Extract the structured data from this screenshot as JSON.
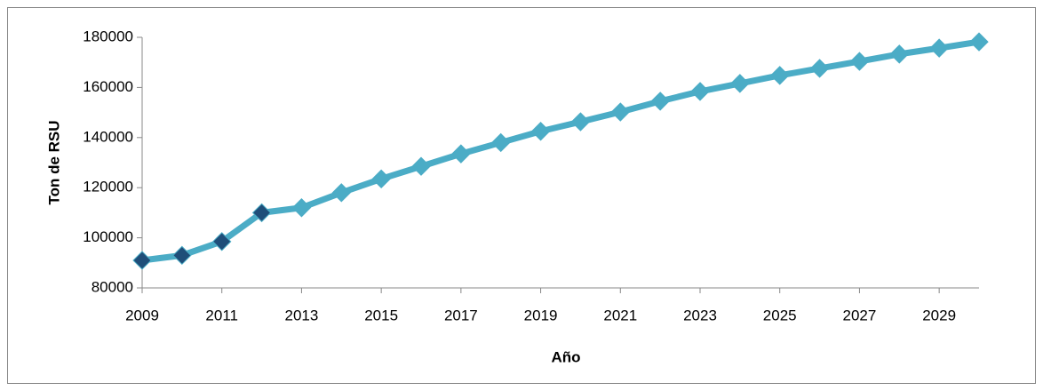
{
  "chart_data": {
    "type": "line",
    "x_label": "Año",
    "y_label": "Ton de RSU",
    "x": [
      2009,
      2010,
      2011,
      2012,
      2013,
      2014,
      2015,
      2016,
      2017,
      2018,
      2019,
      2020,
      2021,
      2022,
      2023,
      2024,
      2025,
      2026,
      2027,
      2028,
      2029,
      2030
    ],
    "series": [
      {
        "name": "Ton de RSU",
        "color": "#4bacc6",
        "values": [
          91000,
          93000,
          98500,
          110000,
          112000,
          118000,
          123500,
          128500,
          133500,
          138000,
          142500,
          146300,
          150200,
          154500,
          158400,
          161600,
          164800,
          167600,
          170400,
          173300,
          175700,
          178200
        ],
        "marker_colors": [
          "#1f4e79",
          "#1f4e79",
          "#1f4e79",
          "#1f4e79",
          "#4bacc6",
          "#4bacc6",
          "#4bacc6",
          "#4bacc6",
          "#4bacc6",
          "#4bacc6",
          "#4bacc6",
          "#4bacc6",
          "#4bacc6",
          "#4bacc6",
          "#4bacc6",
          "#4bacc6",
          "#4bacc6",
          "#4bacc6",
          "#4bacc6",
          "#4bacc6",
          "#4bacc6",
          "#4bacc6"
        ]
      }
    ],
    "xlim": [
      2009,
      2030
    ],
    "xticks": [
      2009,
      2011,
      2013,
      2015,
      2017,
      2019,
      2021,
      2023,
      2025,
      2027,
      2029
    ],
    "ylim": [
      80000,
      180000
    ],
    "yticks": [
      80000,
      100000,
      120000,
      140000,
      160000,
      180000
    ],
    "grid": false
  }
}
